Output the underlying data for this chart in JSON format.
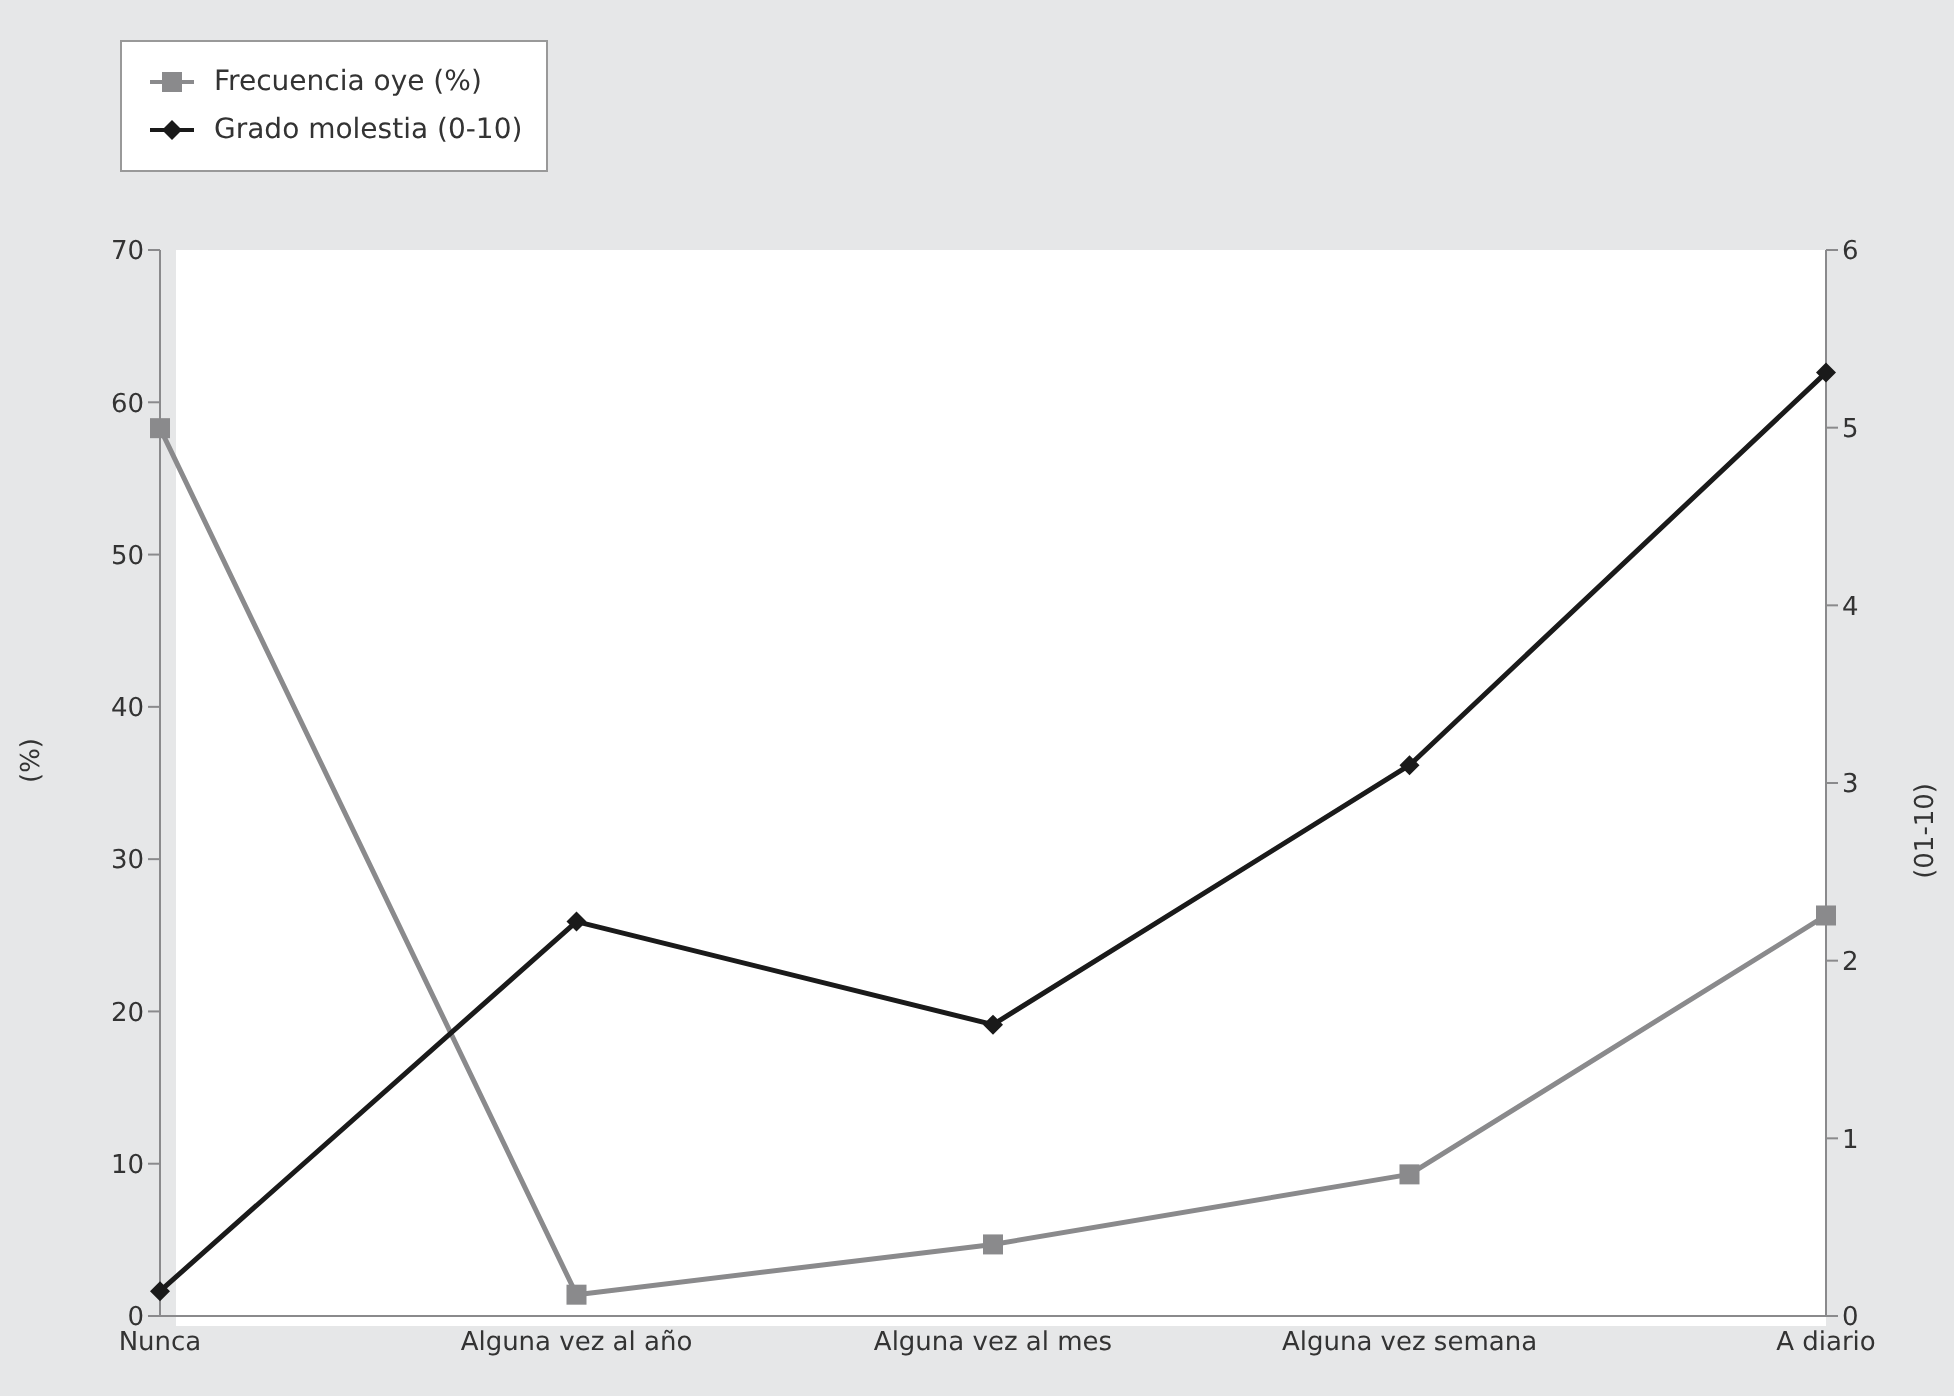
{
  "chart_data": {
    "type": "line",
    "categories": [
      "Nunca",
      "Alguna vez al año",
      "Alguna vez al mes",
      "Alguna vez semana",
      "A diario"
    ],
    "ylabel": "(%)",
    "y2label": "(01-10)",
    "ylim": [
      0,
      70
    ],
    "yticks": [
      0,
      10,
      20,
      30,
      40,
      50,
      60,
      70
    ],
    "y2lim": [
      0,
      6
    ],
    "y2ticks": [
      0,
      1,
      2,
      3,
      4,
      5,
      6
    ],
    "legend": "top left",
    "grid": false,
    "series": [
      {
        "name": "Frecuencia oye (%)",
        "color": "#8a8a8c",
        "marker": "square",
        "values": [
          58.3,
          1.4,
          4.7,
          9.3,
          26.3
        ]
      },
      {
        "name": "Grado molestia (0-10)",
        "color": "#1a1a1a",
        "marker": "diamond",
        "axis": "y2",
        "values": [
          0.14,
          2.22,
          1.64,
          3.1,
          5.31
        ]
      }
    ]
  }
}
